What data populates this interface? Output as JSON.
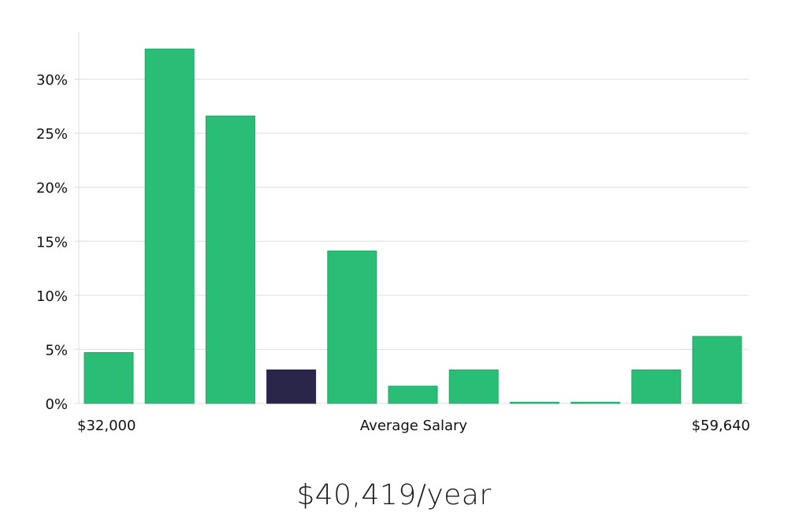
{
  "chart_data": {
    "type": "bar",
    "title": "",
    "xlabel": "Average Salary",
    "ylabel": "",
    "x_min_label": "$32,000",
    "x_max_label": "$59,640",
    "ylim": [
      0,
      35
    ],
    "yticks": [
      0,
      5,
      10,
      15,
      20,
      25,
      30
    ],
    "ytick_labels": [
      "0%",
      "5%",
      "10%",
      "15%",
      "20%",
      "25%",
      "30%"
    ],
    "grid": true,
    "values": [
      4.7,
      32.8,
      26.6,
      3.1,
      14.1,
      1.6,
      3.1,
      0.1,
      0.1,
      3.1,
      6.2
    ],
    "highlight_index": 3,
    "colors": {
      "bar": "#2abd76",
      "bar_stroke": "#1fa865",
      "highlight": "#29264a"
    }
  },
  "summary": {
    "salary_text": "$40,419/year"
  }
}
